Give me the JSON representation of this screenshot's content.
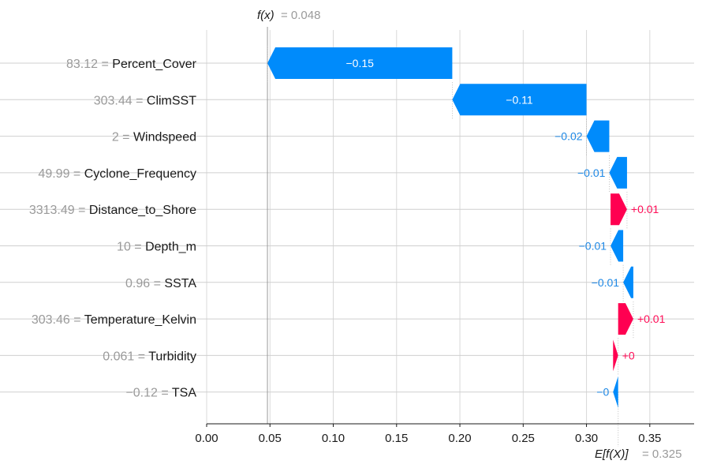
{
  "chart_data": {
    "type": "waterfall",
    "base_value": 0.325,
    "output_value": 0.048,
    "fx_label": "f(x)",
    "fx_value_text": "= 0.048",
    "efx_label": "E[f(X)]",
    "efx_value_text": "= 0.325",
    "xlim": [
      0.0,
      0.385
    ],
    "x_ticks": [
      {
        "value": 0.0,
        "label": "0.00"
      },
      {
        "value": 0.05,
        "label": "0.05"
      },
      {
        "value": 0.1,
        "label": "0.10"
      },
      {
        "value": 0.15,
        "label": "0.15"
      },
      {
        "value": 0.2,
        "label": "0.20"
      },
      {
        "value": 0.25,
        "label": "0.25"
      },
      {
        "value": 0.3,
        "label": "0.30"
      },
      {
        "value": 0.35,
        "label": "0.35"
      }
    ],
    "features": [
      {
        "value_text": "83.12",
        "name": "Percent_Cover",
        "start": 0.048,
        "end": 0.194,
        "label": "−0.15",
        "label_inside": true
      },
      {
        "value_text": "303.44",
        "name": "ClimSST",
        "start": 0.194,
        "end": 0.3,
        "label": "−0.11",
        "label_inside": true
      },
      {
        "value_text": "2",
        "name": "Windspeed",
        "start": 0.3,
        "end": 0.318,
        "label": "−0.02",
        "label_inside": false
      },
      {
        "value_text": "49.99",
        "name": "Cyclone_Frequency",
        "start": 0.318,
        "end": 0.332,
        "label": "−0.01",
        "label_inside": false
      },
      {
        "value_text": "3313.49",
        "name": "Distance_to_Shore",
        "start": 0.332,
        "end": 0.319,
        "label": "+0.01",
        "label_inside": false
      },
      {
        "value_text": "10",
        "name": "Depth_m",
        "start": 0.319,
        "end": 0.329,
        "label": "−0.01",
        "label_inside": false
      },
      {
        "value_text": "0.96",
        "name": "SSTA",
        "start": 0.329,
        "end": 0.337,
        "label": "−0.01",
        "label_inside": false
      },
      {
        "value_text": "303.46",
        "name": "Temperature_Kelvin",
        "start": 0.337,
        "end": 0.325,
        "label": "+0.01",
        "label_inside": false
      },
      {
        "value_text": "0.061",
        "name": "Turbidity",
        "start": 0.325,
        "end": 0.321,
        "label": "+0",
        "label_inside": false
      },
      {
        "value_text": "−0.12",
        "name": "TSA",
        "start": 0.321,
        "end": 0.325,
        "label": "−0",
        "label_inside": false
      }
    ],
    "colors": {
      "negative": "#008bfb",
      "positive": "#ff0051",
      "negative_text": "#1e88e5",
      "positive_text": "#ff0d57"
    },
    "grid": true
  }
}
